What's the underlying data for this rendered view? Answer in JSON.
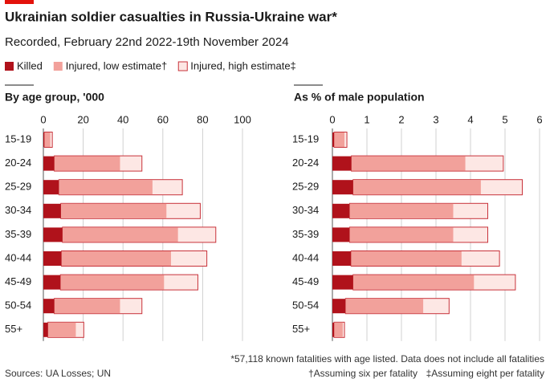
{
  "header": {
    "title": "Ukrainian soldier casualties in Russia-Ukraine war*",
    "subtitle": "Recorded, February 22nd 2022-19th November 2024"
  },
  "chart_data": [
    {
      "type": "bar",
      "orientation": "horizontal",
      "title": "By age group, '000",
      "categories": [
        "15-19",
        "20-24",
        "25-29",
        "30-34",
        "35-39",
        "40-44",
        "45-49",
        "50-54",
        "55+"
      ],
      "series": [
        {
          "name": "Killed",
          "color": "#b0121b",
          "values": [
            0.5,
            5.5,
            7.8,
            8.8,
            9.6,
            9.1,
            8.6,
            5.5,
            2.3
          ]
        },
        {
          "name": "Injured, low estimate†",
          "color": "#f2a19b",
          "values": [
            3,
            33,
            47,
            53,
            58,
            55,
            52,
            33,
            14
          ]
        },
        {
          "name": "Injured, high estimate‡",
          "color": "#fde7e4",
          "values": [
            4,
            44,
            62,
            70,
            77,
            73,
            69,
            44,
            18
          ]
        }
      ],
      "xlim": [
        0,
        100
      ],
      "xticks": [
        0,
        20,
        40,
        60,
        80,
        100
      ],
      "grid": true
    },
    {
      "type": "bar",
      "orientation": "horizontal",
      "title": "As % of male population",
      "categories": [
        "15-19",
        "20-24",
        "25-29",
        "30-34",
        "35-39",
        "40-44",
        "45-49",
        "50-54",
        "55+"
      ],
      "series": [
        {
          "color": "#b0121b",
          "values": [
            0.05,
            0.55,
            0.6,
            0.5,
            0.5,
            0.54,
            0.6,
            0.38,
            0.05
          ]
        },
        {
          "color": "#f2a19b",
          "values": [
            0.3,
            3.3,
            3.7,
            3.0,
            3.0,
            3.2,
            3.5,
            2.25,
            0.25
          ]
        },
        {
          "color": "#fde7e4",
          "values": [
            0.37,
            4.4,
            4.9,
            4.0,
            4.0,
            4.3,
            4.7,
            3.0,
            0.3
          ]
        }
      ],
      "xlim": [
        0,
        6
      ],
      "xticks": [
        0,
        1,
        2,
        3,
        4,
        5,
        6
      ],
      "grid": true
    }
  ],
  "footer": {
    "note": "*57,118 known fatalities with age listed. Data does not include all fatalities",
    "note2": "†Assuming six per fatality",
    "note3": "‡Assuming eight per fatality",
    "source": "Sources: UA Losses; UN"
  }
}
